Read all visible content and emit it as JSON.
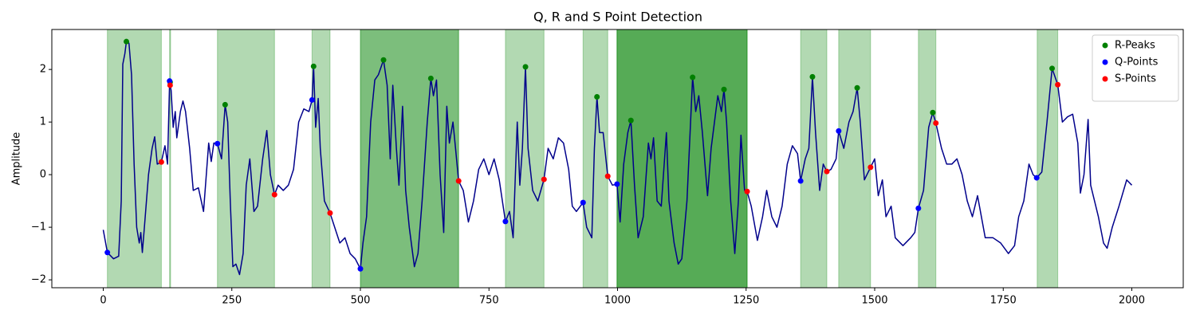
{
  "chart_data": {
    "type": "line",
    "title": "Q, R and S Point Detection",
    "ylabel": "Amplitude",
    "xlim": [
      -100,
      2100
    ],
    "ylim": [
      -2.15,
      2.76
    ],
    "xticks": [
      0,
      250,
      500,
      750,
      1000,
      1250,
      1500,
      1750,
      2000
    ],
    "yticks": [
      {
        "value": -2,
        "label": "−2"
      },
      {
        "value": -1,
        "label": "−1"
      },
      0,
      1,
      2
    ],
    "legend": "upper right",
    "spans": {
      "color": "#008000",
      "ranges": [
        [
          8,
          113
        ],
        [
          129,
          131
        ],
        [
          222,
          333
        ],
        [
          406,
          441
        ],
        [
          500,
          691
        ],
        [
          500,
          691
        ],
        [
          782,
          857
        ],
        [
          933,
          981
        ],
        [
          999,
          1252
        ],
        [
          999,
          1252
        ],
        [
          999,
          1252
        ],
        [
          1356,
          1407
        ],
        [
          1430,
          1492
        ],
        [
          1585,
          1619
        ],
        [
          1816,
          1856
        ]
      ]
    },
    "line": {
      "color": "#00008b",
      "x": [
        0,
        8,
        20,
        30,
        35,
        38,
        42,
        45,
        50,
        55,
        60,
        65,
        70,
        73,
        76,
        80,
        88,
        95,
        100,
        105,
        113,
        120,
        125,
        129,
        132,
        136,
        140,
        143,
        150,
        155,
        160,
        168,
        175,
        185,
        195,
        205,
        210,
        215,
        222,
        230,
        237,
        242,
        247,
        252,
        258,
        265,
        272,
        278,
        285,
        293,
        300,
        310,
        318,
        325,
        333,
        340,
        350,
        360,
        370,
        380,
        390,
        400,
        406,
        409,
        413,
        418,
        422,
        430,
        441,
        450,
        460,
        470,
        480,
        490,
        500,
        505,
        512,
        520,
        528,
        535,
        545,
        552,
        558,
        563,
        570,
        575,
        582,
        588,
        595,
        605,
        612,
        620,
        630,
        637,
        642,
        648,
        655,
        662,
        668,
        673,
        680,
        685,
        691,
        700,
        710,
        720,
        730,
        740,
        750,
        760,
        770,
        782,
        790,
        797,
        805,
        810,
        815,
        821,
        826,
        835,
        845,
        857,
        865,
        875,
        885,
        895,
        905,
        912,
        920,
        933,
        940,
        950,
        955,
        960,
        965,
        972,
        981,
        990,
        999,
        1005,
        1012,
        1020,
        1026,
        1033,
        1040,
        1050,
        1060,
        1065,
        1070,
        1077,
        1085,
        1095,
        1100,
        1110,
        1118,
        1125,
        1135,
        1146,
        1152,
        1158,
        1165,
        1175,
        1182,
        1195,
        1202,
        1207,
        1212,
        1220,
        1228,
        1235,
        1240,
        1247,
        1252,
        1260,
        1272,
        1282,
        1290,
        1300,
        1310,
        1320,
        1330,
        1340,
        1350,
        1356,
        1365,
        1372,
        1379,
        1385,
        1393,
        1400,
        1407,
        1415,
        1425,
        1430,
        1440,
        1450,
        1458,
        1466,
        1472,
        1480,
        1492,
        1500,
        1507,
        1515,
        1522,
        1532,
        1540,
        1555,
        1570,
        1578,
        1585,
        1595,
        1605,
        1613,
        1619,
        1630,
        1640,
        1650,
        1660,
        1670,
        1680,
        1690,
        1700,
        1715,
        1730,
        1745,
        1760,
        1772,
        1780,
        1790,
        1800,
        1808,
        1815,
        1825,
        1835,
        1845,
        1856,
        1865,
        1875,
        1885,
        1895,
        1900,
        1907,
        1915,
        1920,
        1935,
        1945,
        1952,
        1962,
        1975,
        1990,
        2000
      ],
      "values": [
        -1.05,
        -1.48,
        -1.6,
        -1.55,
        -0.5,
        2.1,
        2.3,
        2.53,
        2.5,
        1.9,
        0.2,
        -1.0,
        -1.3,
        -1.1,
        -1.48,
        -1.0,
        0.0,
        0.5,
        0.72,
        0.2,
        0.24,
        0.55,
        0.2,
        1.76,
        1.6,
        0.9,
        1.2,
        0.7,
        1.2,
        1.4,
        1.2,
        0.5,
        -0.3,
        -0.25,
        -0.7,
        0.6,
        0.25,
        0.6,
        0.59,
        0.3,
        1.33,
        1.0,
        -0.5,
        -1.75,
        -1.7,
        -1.9,
        -1.5,
        -0.2,
        0.3,
        -0.7,
        -0.6,
        0.3,
        0.84,
        0.0,
        -0.38,
        -0.2,
        -0.3,
        -0.2,
        0.1,
        1.0,
        1.25,
        1.2,
        1.42,
        2.06,
        0.9,
        1.45,
        0.5,
        -0.5,
        -0.73,
        -1.0,
        -1.3,
        -1.2,
        -1.5,
        -1.6,
        -1.79,
        -1.3,
        -0.8,
        1.0,
        1.8,
        1.9,
        2.18,
        1.7,
        0.3,
        1.7,
        0.5,
        -0.2,
        1.3,
        -0.3,
        -1.0,
        -1.75,
        -1.5,
        -0.5,
        1.0,
        1.83,
        1.5,
        1.8,
        0.0,
        -1.1,
        1.3,
        0.6,
        1.0,
        0.5,
        -0.12,
        -0.3,
        -0.9,
        -0.5,
        0.1,
        0.3,
        0.0,
        0.3,
        -0.1,
        -0.89,
        -0.7,
        -1.2,
        1.0,
        -0.2,
        0.5,
        2.05,
        0.5,
        -0.3,
        -0.5,
        -0.09,
        0.5,
        0.3,
        0.7,
        0.6,
        0.1,
        -0.6,
        -0.7,
        -0.53,
        -1.0,
        -1.2,
        0.5,
        1.48,
        0.8,
        0.8,
        -0.03,
        -0.2,
        -0.18,
        -0.9,
        0.2,
        0.8,
        1.03,
        -0.2,
        -1.2,
        -0.8,
        0.6,
        0.3,
        0.7,
        -0.5,
        -0.6,
        0.8,
        -0.5,
        -1.3,
        -1.7,
        -1.6,
        -0.5,
        1.85,
        1.2,
        1.5,
        0.8,
        -0.4,
        0.5,
        1.5,
        1.2,
        1.62,
        1.0,
        -0.5,
        -1.5,
        -0.5,
        0.75,
        -0.3,
        -0.32,
        -0.6,
        -1.25,
        -0.8,
        -0.3,
        -0.8,
        -1.0,
        -0.6,
        0.2,
        0.55,
        0.4,
        -0.12,
        0.3,
        0.5,
        1.86,
        0.8,
        -0.3,
        0.2,
        0.06,
        0.1,
        0.3,
        0.83,
        0.5,
        1.0,
        1.2,
        1.65,
        1.0,
        -0.1,
        0.14,
        0.3,
        -0.4,
        -0.1,
        -0.8,
        -0.6,
        -1.2,
        -1.35,
        -1.2,
        -1.1,
        -0.64,
        -0.3,
        0.9,
        1.18,
        0.98,
        0.5,
        0.2,
        0.2,
        0.3,
        0.0,
        -0.5,
        -0.8,
        -0.4,
        -1.2,
        -1.2,
        -1.3,
        -1.5,
        -1.35,
        -0.8,
        -0.5,
        0.2,
        0.0,
        -0.06,
        0.05,
        1.0,
        2.02,
        1.71,
        1.0,
        1.1,
        1.15,
        0.6,
        -0.35,
        0.0,
        1.05,
        -0.2,
        -0.8,
        -1.3,
        -1.4,
        -1.0,
        -0.6,
        -0.1,
        -0.2
      ]
    },
    "series": [
      {
        "name": "R-Peaks",
        "color": "#008000",
        "x": [
          45,
          130,
          237,
          409,
          545,
          637,
          821,
          960,
          1026,
          1146,
          1207,
          1379,
          1466,
          1613,
          1845
        ],
        "values": [
          2.53,
          1.76,
          1.33,
          2.06,
          2.18,
          1.83,
          2.05,
          1.48,
          1.03,
          1.85,
          1.62,
          1.86,
          1.65,
          1.18,
          2.02
        ]
      },
      {
        "name": "Q-Points",
        "color": "#0000ff",
        "x": [
          8,
          129,
          222,
          406,
          500,
          782,
          933,
          999,
          1356,
          1430,
          1585,
          1815
        ],
        "values": [
          -1.48,
          1.78,
          0.59,
          1.42,
          -1.79,
          -0.89,
          -0.53,
          -0.18,
          -0.12,
          0.83,
          -0.64,
          -0.06
        ]
      },
      {
        "name": "S-Points",
        "color": "#ff0000",
        "x": [
          113,
          130,
          333,
          441,
          691,
          857,
          981,
          1252,
          1407,
          1492,
          1619,
          1856
        ],
        "values": [
          0.24,
          1.7,
          -0.38,
          -0.73,
          -0.12,
          -0.09,
          -0.03,
          -0.32,
          0.06,
          0.14,
          0.98,
          1.71
        ]
      }
    ]
  }
}
